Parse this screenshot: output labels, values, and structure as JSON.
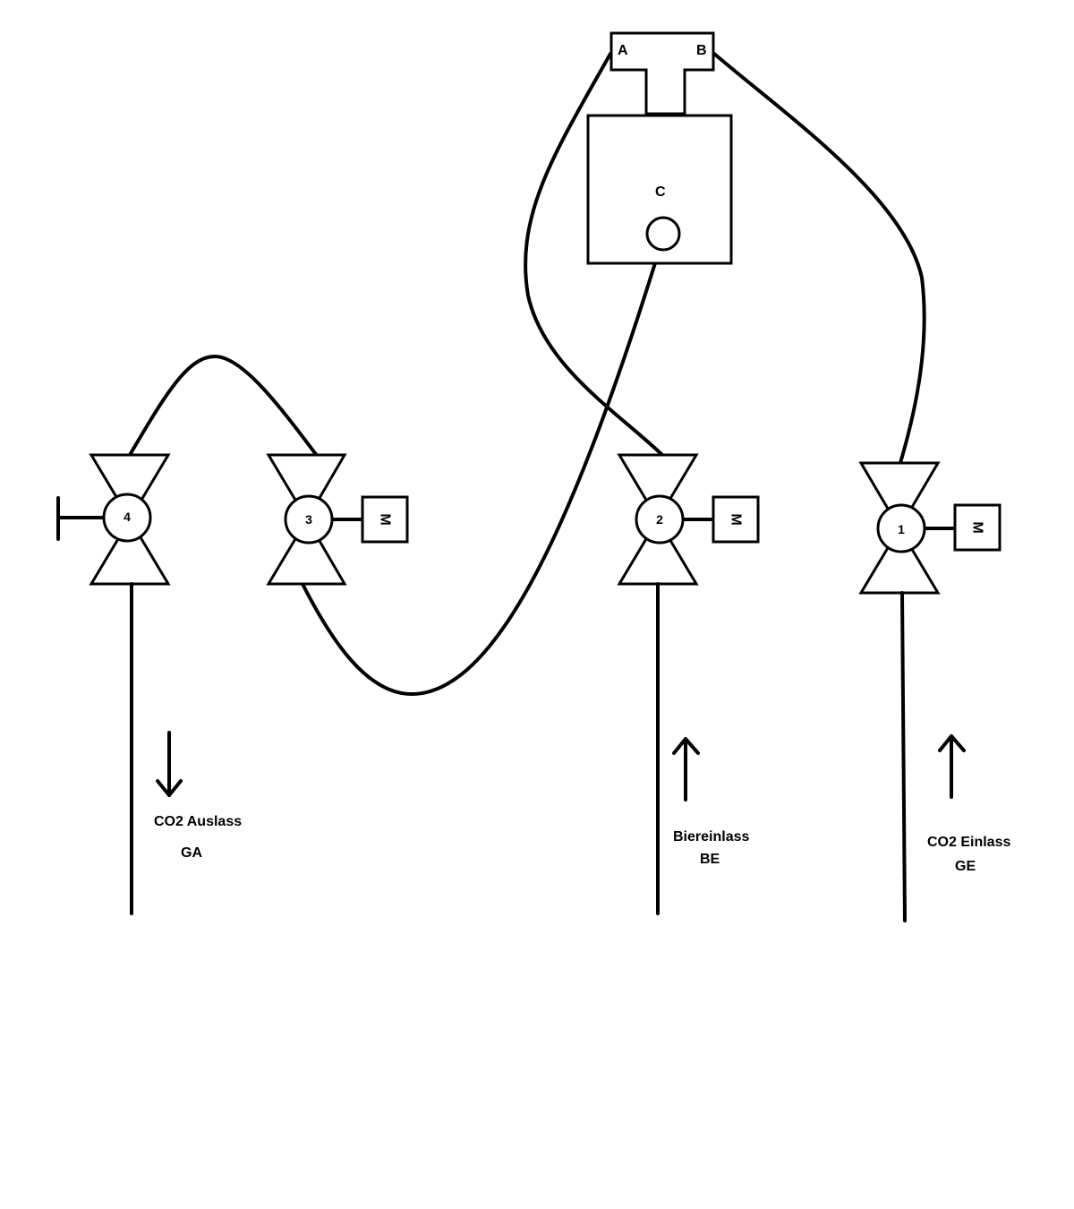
{
  "distributor": {
    "port_a": "A",
    "port_b": "B",
    "port_c": "C"
  },
  "valves": [
    {
      "number": "4",
      "actuator": "manual"
    },
    {
      "number": "3",
      "actuator": "motor"
    },
    {
      "number": "2",
      "actuator": "motor"
    },
    {
      "number": "1",
      "actuator": "motor"
    }
  ],
  "flows": {
    "co2_outlet": {
      "label": "CO2 Auslass",
      "code": "GA",
      "direction": "down"
    },
    "beer_inlet": {
      "label": "Biereinlass",
      "code": "BE",
      "direction": "up"
    },
    "co2_inlet": {
      "label": "CO2 Einlass",
      "code": "GE",
      "direction": "up"
    }
  },
  "motor_symbol": "M"
}
